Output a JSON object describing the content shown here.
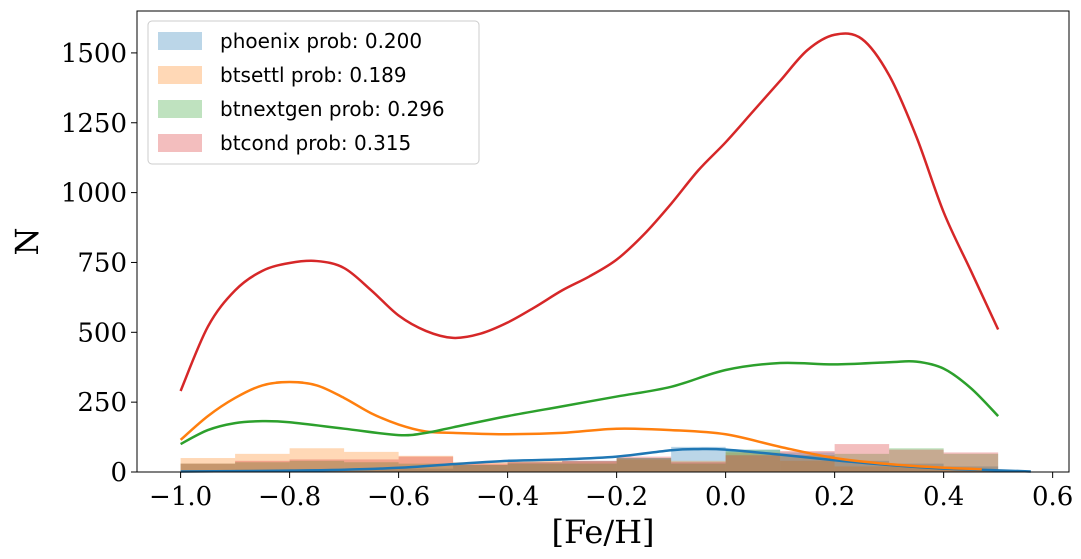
{
  "chart_data": {
    "type": "area",
    "xlabel": "[Fe/H]",
    "ylabel": "N",
    "xlim": [
      -1.08,
      0.63
    ],
    "ylim": [
      0,
      1650
    ],
    "xticks": [
      -1.0,
      -0.8,
      -0.6,
      -0.4,
      -0.2,
      0.0,
      0.2,
      0.4,
      0.6
    ],
    "xtick_labels": [
      "−1.0",
      "−0.8",
      "−0.6",
      "−0.4",
      "−0.2",
      "0.0",
      "0.2",
      "0.4",
      "0.6"
    ],
    "yticks": [
      0,
      250,
      500,
      750,
      1000,
      1250,
      1500
    ],
    "ytick_labels": [
      "0",
      "250",
      "500",
      "750",
      "1000",
      "1250",
      "1500"
    ],
    "legend_position": "upper-left",
    "bin_edges": [
      -1.0,
      -0.9,
      -0.8,
      -0.7,
      -0.6,
      -0.5,
      -0.4,
      -0.3,
      -0.2,
      -0.1,
      0.0,
      0.1,
      0.2,
      0.3,
      0.4,
      0.5
    ],
    "series": [
      {
        "name": "phoenix prob: 0.200",
        "color": "#1f77b4",
        "histogram": [
          5,
          8,
          10,
          10,
          12,
          25,
          35,
          40,
          50,
          90,
          80,
          70,
          40,
          30,
          20
        ],
        "curve": {
          "x": [
            -1.0,
            -0.9,
            -0.8,
            -0.7,
            -0.6,
            -0.5,
            -0.4,
            -0.3,
            -0.2,
            -0.1,
            -0.05,
            0.0,
            0.1,
            0.2,
            0.3,
            0.4,
            0.5,
            0.56
          ],
          "y": [
            2,
            3,
            5,
            8,
            15,
            28,
            40,
            45,
            55,
            78,
            82,
            80,
            62,
            42,
            25,
            12,
            6,
            2
          ]
        }
      },
      {
        "name": "btsettl prob: 0.189",
        "color": "#ff7f0e",
        "histogram": [
          50,
          65,
          85,
          72,
          58,
          35,
          40,
          38,
          45,
          40,
          70,
          40,
          20,
          20,
          10
        ],
        "curve": {
          "x": [
            -1.0,
            -0.95,
            -0.9,
            -0.85,
            -0.8,
            -0.75,
            -0.7,
            -0.65,
            -0.6,
            -0.55,
            -0.5,
            -0.4,
            -0.3,
            -0.2,
            -0.1,
            0.0,
            0.1,
            0.2,
            0.3,
            0.4,
            0.47
          ],
          "y": [
            115,
            200,
            265,
            310,
            322,
            310,
            265,
            210,
            170,
            145,
            140,
            135,
            140,
            155,
            150,
            135,
            90,
            50,
            28,
            15,
            10
          ]
        }
      },
      {
        "name": "btnextgen prob: 0.296",
        "color": "#2ca02c",
        "histogram": [
          30,
          35,
          40,
          35,
          30,
          25,
          30,
          30,
          50,
          30,
          80,
          60,
          65,
          85,
          65
        ],
        "curve": {
          "x": [
            -1.0,
            -0.95,
            -0.9,
            -0.85,
            -0.8,
            -0.7,
            -0.6,
            -0.55,
            -0.5,
            -0.4,
            -0.3,
            -0.2,
            -0.1,
            0.0,
            0.1,
            0.2,
            0.3,
            0.35,
            0.4,
            0.45,
            0.5
          ],
          "y": [
            100,
            150,
            175,
            182,
            178,
            155,
            132,
            140,
            160,
            200,
            235,
            270,
            305,
            365,
            390,
            385,
            393,
            395,
            370,
            300,
            200
          ]
        }
      },
      {
        "name": "btcond prob: 0.315",
        "color": "#d62728",
        "histogram": [
          30,
          40,
          45,
          45,
          55,
          30,
          35,
          40,
          55,
          35,
          60,
          75,
          100,
          80,
          70
        ],
        "curve": {
          "x": [
            -1.0,
            -0.95,
            -0.9,
            -0.85,
            -0.8,
            -0.75,
            -0.7,
            -0.65,
            -0.6,
            -0.55,
            -0.5,
            -0.45,
            -0.4,
            -0.35,
            -0.3,
            -0.25,
            -0.2,
            -0.15,
            -0.1,
            -0.05,
            0.0,
            0.05,
            0.1,
            0.15,
            0.2,
            0.25,
            0.3,
            0.35,
            0.4,
            0.45,
            0.5
          ],
          "y": [
            290,
            520,
            650,
            720,
            748,
            755,
            730,
            650,
            560,
            505,
            480,
            495,
            535,
            590,
            650,
            700,
            760,
            850,
            960,
            1080,
            1180,
            1290,
            1400,
            1510,
            1565,
            1550,
            1420,
            1200,
            930,
            720,
            510
          ]
        }
      }
    ]
  }
}
